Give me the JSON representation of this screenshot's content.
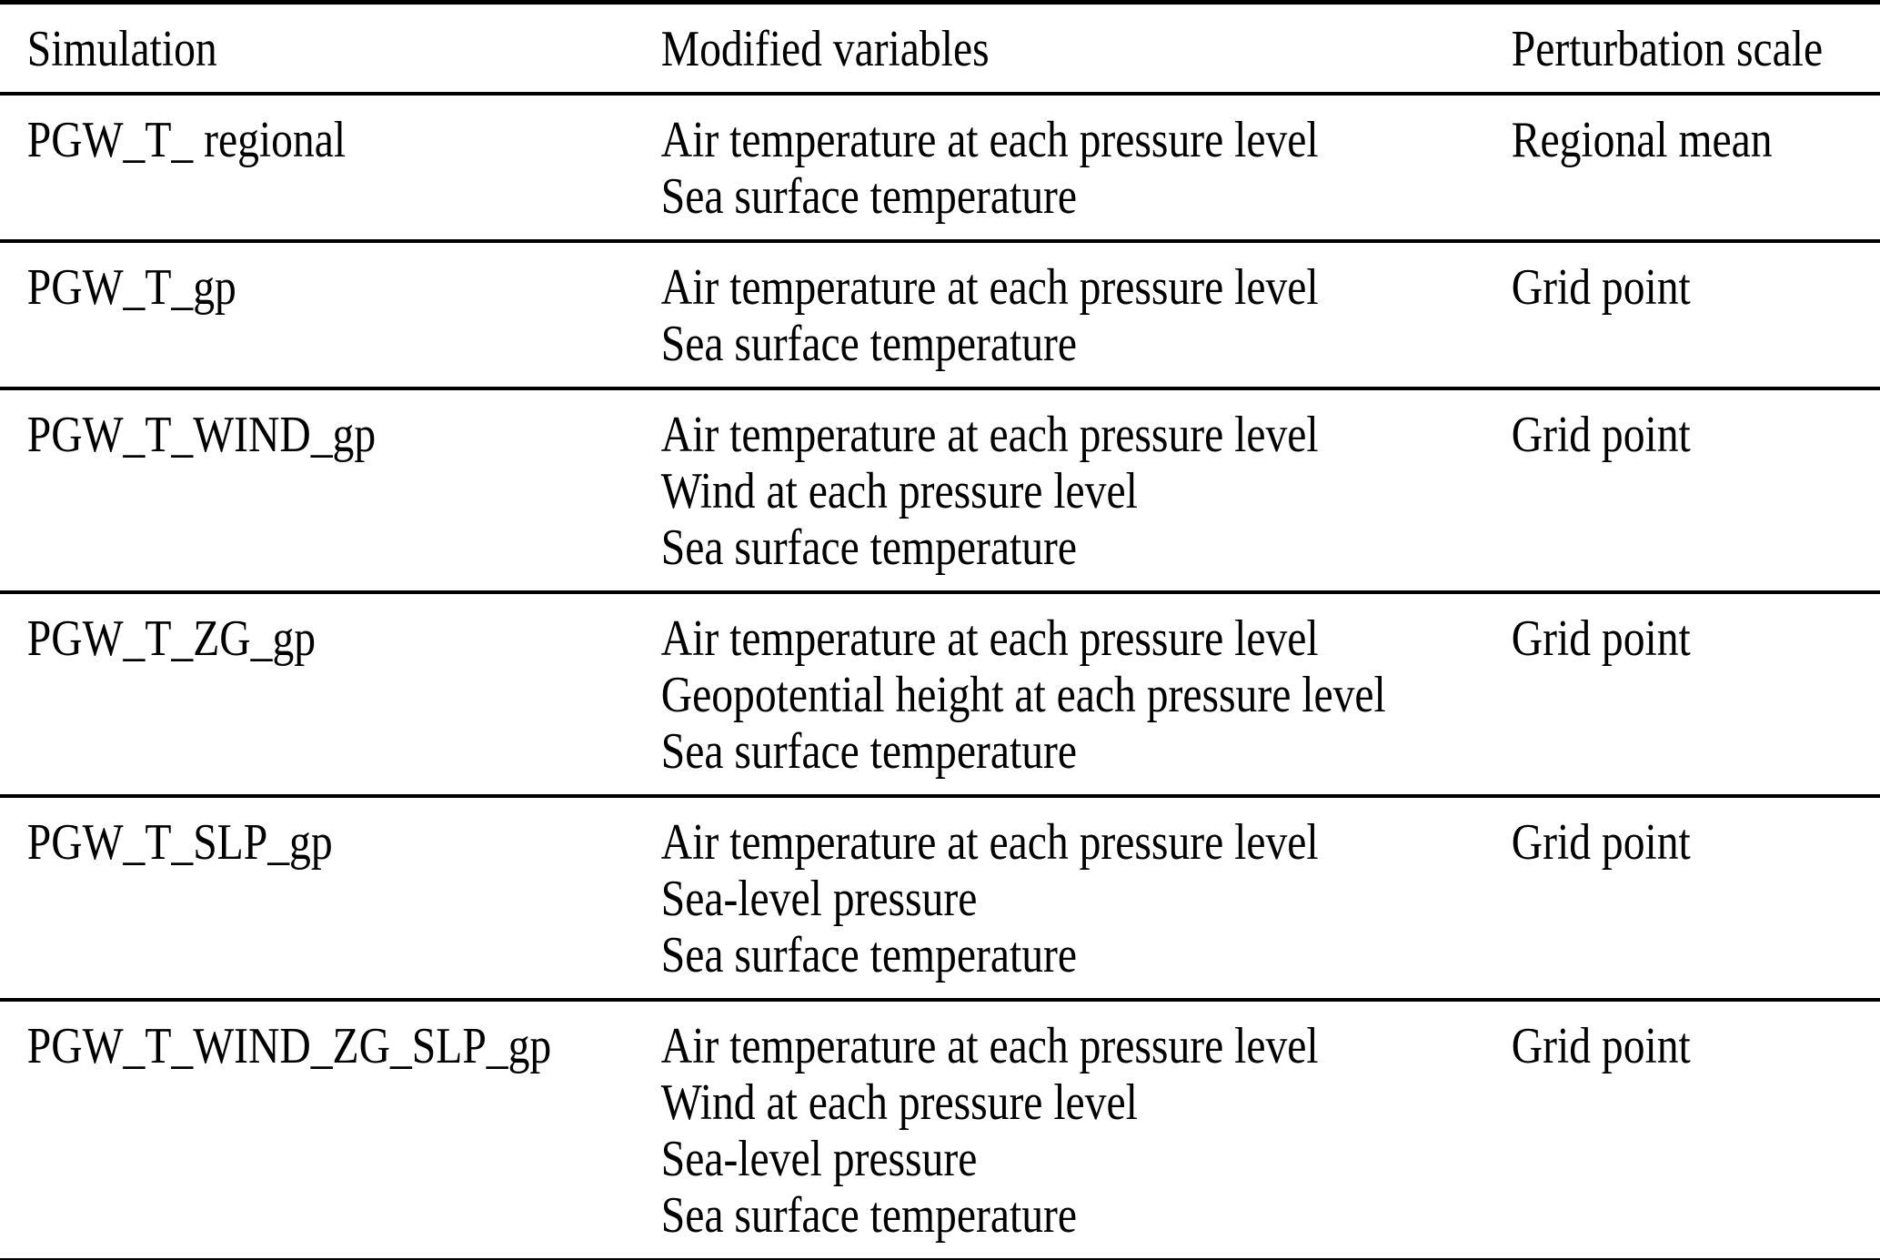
{
  "table": {
    "columns": [
      "Simulation",
      "Modified variables",
      "Perturbation scale"
    ],
    "rows": [
      {
        "simulation": "PGW_T_ regional",
        "variables": [
          "Air temperature at each pressure level",
          "Sea surface temperature"
        ],
        "scale": "Regional mean"
      },
      {
        "simulation": "PGW_T_gp",
        "variables": [
          "Air temperature at each pressure level",
          "Sea surface temperature"
        ],
        "scale": "Grid point"
      },
      {
        "simulation": "PGW_T_WIND_gp",
        "variables": [
          "Air temperature at each pressure level",
          "Wind at each pressure level",
          "Sea surface temperature"
        ],
        "scale": "Grid point"
      },
      {
        "simulation": "PGW_T_ZG_gp",
        "variables": [
          "Air temperature at each pressure level",
          "Geopotential height at each pressure level",
          "Sea surface temperature"
        ],
        "scale": "Grid point"
      },
      {
        "simulation": "PGW_T_SLP_gp",
        "variables": [
          "Air temperature at each pressure level",
          "Sea-level pressure",
          "Sea surface temperature"
        ],
        "scale": "Grid point"
      },
      {
        "simulation": "PGW_T_WIND_ZG_SLP_gp",
        "variables": [
          "Air temperature at each pressure level",
          "Wind at each pressure level",
          "Sea-level pressure",
          "Sea surface temperature"
        ],
        "scale": "Grid point"
      }
    ]
  }
}
